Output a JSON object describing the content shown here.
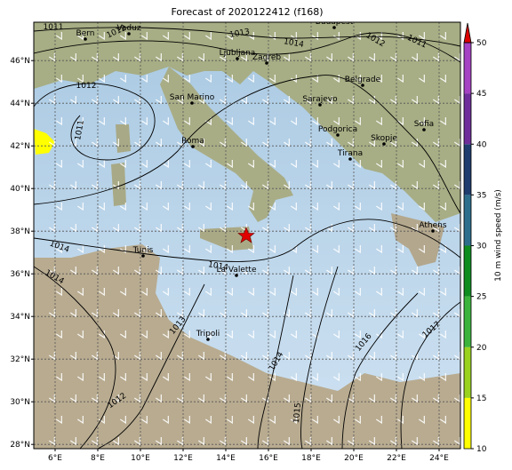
{
  "title": "Forecast of 2020122412 (f168)",
  "map": {
    "lon_lim": [
      5,
      25
    ],
    "lat_lim": [
      27.8,
      47.8
    ],
    "grid": true,
    "lon_ticks": [
      {
        "value": 6,
        "label": "6°E"
      },
      {
        "value": 8,
        "label": "8°E"
      },
      {
        "value": 10,
        "label": "10°E"
      },
      {
        "value": 12,
        "label": "12°E"
      },
      {
        "value": 14,
        "label": "14°E"
      },
      {
        "value": 16,
        "label": "16°E"
      },
      {
        "value": 18,
        "label": "18°E"
      },
      {
        "value": 20,
        "label": "20°E"
      },
      {
        "value": 22,
        "label": "22°E"
      },
      {
        "value": 24,
        "label": "24°E"
      }
    ],
    "lat_ticks": [
      {
        "value": 28,
        "label": "28°N"
      },
      {
        "value": 30,
        "label": "30°N"
      },
      {
        "value": 32,
        "label": "32°N"
      },
      {
        "value": 34,
        "label": "34°N"
      },
      {
        "value": 36,
        "label": "36°N"
      },
      {
        "value": 38,
        "label": "38°N"
      },
      {
        "value": 40,
        "label": "40°N"
      },
      {
        "value": 42,
        "label": "42°N"
      },
      {
        "value": 44,
        "label": "44°N"
      },
      {
        "value": 46,
        "label": "46°N"
      }
    ]
  },
  "cities": [
    "Bern",
    "Vaduz",
    "Budapest",
    "Ljubljana",
    "Zagreb",
    "San Marino",
    "Belgrade",
    "Sarajevo",
    "Roma",
    "Podgorica",
    "Skopje",
    "Sofia",
    "Tirana",
    "Tunis",
    "La Valette",
    "Tripoli",
    "Athens"
  ],
  "isobar_labels": [
    "1011",
    "1012",
    "1013",
    "1014",
    "1012",
    "1011",
    "1012",
    "1011",
    "1014",
    "1014",
    "1014",
    "1013",
    "1014",
    "1012",
    "1015",
    "1016",
    "1017"
  ],
  "colorbar": {
    "label": "10 m wind speed (m/s)",
    "lim": [
      10,
      50
    ],
    "ticks": [
      10,
      15,
      20,
      25,
      30,
      35,
      40,
      45,
      50
    ],
    "colors": [
      "#ffff00",
      "#9ad21e",
      "#3cb43c",
      "#0f8c1e",
      "#2d6e8c",
      "#1e3c6e",
      "#6e2d9b",
      "#a541c3"
    ],
    "extend_color": "#dc0000"
  }
}
